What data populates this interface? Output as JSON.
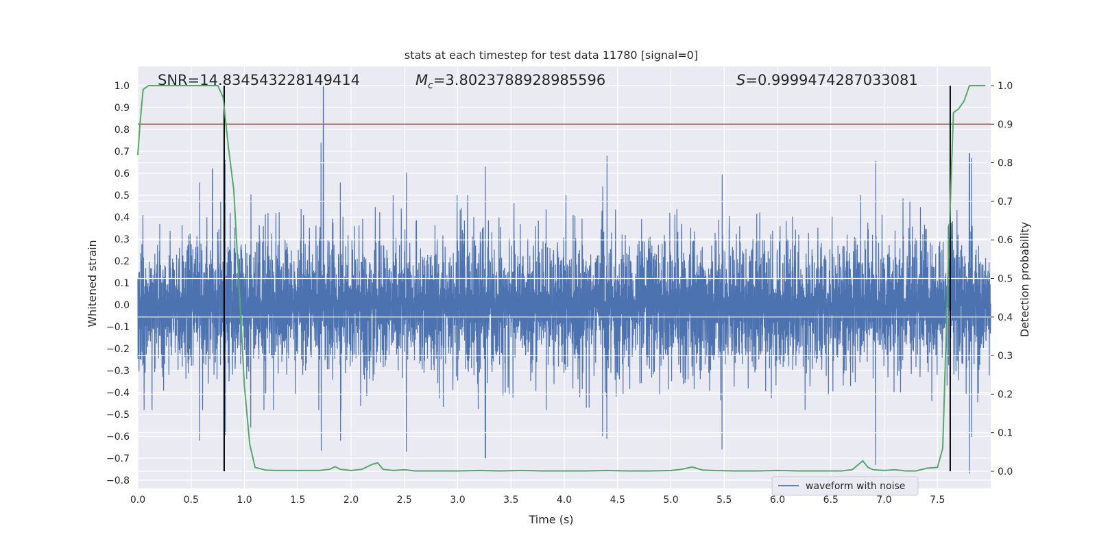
{
  "chart_data": {
    "type": "line",
    "title": "stats at each timestep for test data 11780 [signal=0]",
    "xlabel": "Time (s)",
    "ylabel_left": "Whitened strain",
    "ylabel_right": "Detection probability",
    "xlim": [
      0.0,
      8.0
    ],
    "ylim_left": [
      -0.85,
      1.08
    ],
    "ylim_right": [
      -0.05,
      1.05
    ],
    "x_ticks": [
      "0.0",
      "0.5",
      "1.0",
      "1.5",
      "2.0",
      "2.5",
      "3.0",
      "3.5",
      "4.0",
      "4.5",
      "5.0",
      "5.5",
      "6.0",
      "6.5",
      "7.0",
      "7.5"
    ],
    "x_tick_values": [
      0.0,
      0.5,
      1.0,
      1.5,
      2.0,
      2.5,
      3.0,
      3.5,
      4.0,
      4.5,
      5.0,
      5.5,
      6.0,
      6.5,
      7.0,
      7.5
    ],
    "y_left_ticks": [
      "1.0",
      "0.9",
      "0.8",
      "0.7",
      "0.6",
      "0.5",
      "0.4",
      "0.3",
      "0.2",
      "0.1",
      "0.0",
      "−0.1",
      "−0.2",
      "−0.3",
      "−0.4",
      "−0.5",
      "−0.6",
      "−0.7",
      "−0.8"
    ],
    "y_left_tick_values": [
      1.0,
      0.9,
      0.8,
      0.7,
      0.6,
      0.5,
      0.4,
      0.3,
      0.2,
      0.1,
      0.0,
      -0.1,
      -0.2,
      -0.3,
      -0.4,
      -0.5,
      -0.6,
      -0.7,
      -0.8
    ],
    "y_right_ticks": [
      "1.0",
      "0.9",
      "0.8",
      "0.7",
      "0.6",
      "0.5",
      "0.4",
      "0.3",
      "0.2",
      "0.1",
      "0.0"
    ],
    "y_right_tick_values": [
      1.0,
      0.9,
      0.8,
      0.7,
      0.6,
      0.5,
      0.4,
      0.3,
      0.2,
      0.1,
      0.0
    ],
    "grid": true,
    "legend": {
      "position": "lower-right",
      "entries": [
        "waveform with noise"
      ]
    },
    "annotations": {
      "snr": "SNR=14.834543228149414",
      "mc_prefix": "M",
      "mc_sub": "c",
      "mc_value": "=3.8023788928985596",
      "s_prefix": "S",
      "s_value": "=0.9999474287033081"
    },
    "waveform": {
      "name": "waveform with noise",
      "color": "#4c72b0",
      "duration": 8.0,
      "typical_envelope": 0.3,
      "spikes": [
        {
          "t": 1.74,
          "y": 1.0
        },
        {
          "t": 1.72,
          "y": 0.74
        },
        {
          "t": 0.82,
          "y": 0.66
        },
        {
          "t": 4.4,
          "y": 0.68
        },
        {
          "t": 6.92,
          "y": 0.68
        },
        {
          "t": 7.82,
          "y": 0.67
        },
        {
          "t": 2.52,
          "y": 0.64
        },
        {
          "t": 0.7,
          "y": 0.62
        },
        {
          "t": 3.26,
          "y": -0.7
        },
        {
          "t": 6.92,
          "y": -0.73
        },
        {
          "t": 7.8,
          "y": -0.77
        },
        {
          "t": 0.58,
          "y": -0.62
        },
        {
          "t": 5.48,
          "y": -0.66
        },
        {
          "t": 2.52,
          "y": -0.67
        },
        {
          "t": 1.06,
          "y": -0.56
        },
        {
          "t": 4.36,
          "y": -0.6
        },
        {
          "t": 1.9,
          "y": -0.62
        }
      ]
    },
    "detection_probability": {
      "color": "#55a868",
      "x": [
        0.0,
        0.02,
        0.05,
        0.1,
        0.2,
        0.3,
        0.4,
        0.5,
        0.6,
        0.7,
        0.75,
        0.8,
        0.85,
        0.9,
        0.95,
        1.0,
        1.05,
        1.1,
        1.2,
        1.3,
        1.4,
        1.5,
        1.6,
        1.7,
        1.8,
        1.85,
        1.9,
        2.0,
        2.1,
        2.2,
        2.25,
        2.3,
        2.4,
        2.5,
        2.6,
        2.8,
        3.0,
        3.2,
        3.4,
        3.6,
        3.8,
        4.0,
        4.2,
        4.4,
        4.6,
        4.8,
        5.0,
        5.1,
        5.2,
        5.3,
        5.4,
        5.6,
        5.8,
        6.0,
        6.2,
        6.4,
        6.6,
        6.7,
        6.8,
        6.85,
        6.9,
        7.0,
        7.1,
        7.2,
        7.3,
        7.4,
        7.5,
        7.55,
        7.6,
        7.65,
        7.7,
        7.75,
        7.8,
        7.85,
        7.9,
        7.95
      ],
      "y": [
        0.82,
        0.9,
        0.99,
        1.0,
        1.0,
        1.0,
        1.0,
        1.0,
        1.0,
        1.0,
        1.0,
        0.97,
        0.84,
        0.73,
        0.48,
        0.22,
        0.07,
        0.01,
        0.003,
        0.002,
        0.002,
        0.002,
        0.002,
        0.002,
        0.005,
        0.012,
        0.005,
        0.002,
        0.005,
        0.018,
        0.022,
        0.005,
        0.002,
        0.004,
        0.001,
        0.001,
        0.001,
        0.002,
        0.001,
        0.002,
        0.001,
        0.001,
        0.001,
        0.002,
        0.001,
        0.001,
        0.002,
        0.005,
        0.011,
        0.003,
        0.002,
        0.001,
        0.001,
        0.002,
        0.001,
        0.001,
        0.001,
        0.004,
        0.027,
        0.01,
        0.004,
        0.002,
        0.004,
        0.001,
        0.001,
        0.008,
        0.01,
        0.06,
        0.52,
        0.93,
        0.94,
        0.96,
        1.0,
        1.0,
        1.0,
        1.0
      ]
    },
    "threshold": {
      "value": 0.9,
      "axis": "right",
      "color": "#c44e52"
    },
    "event_lines": {
      "times": [
        0.81,
        7.62
      ],
      "color": "#000000",
      "y_range_right": [
        0.0,
        1.0
      ]
    }
  }
}
